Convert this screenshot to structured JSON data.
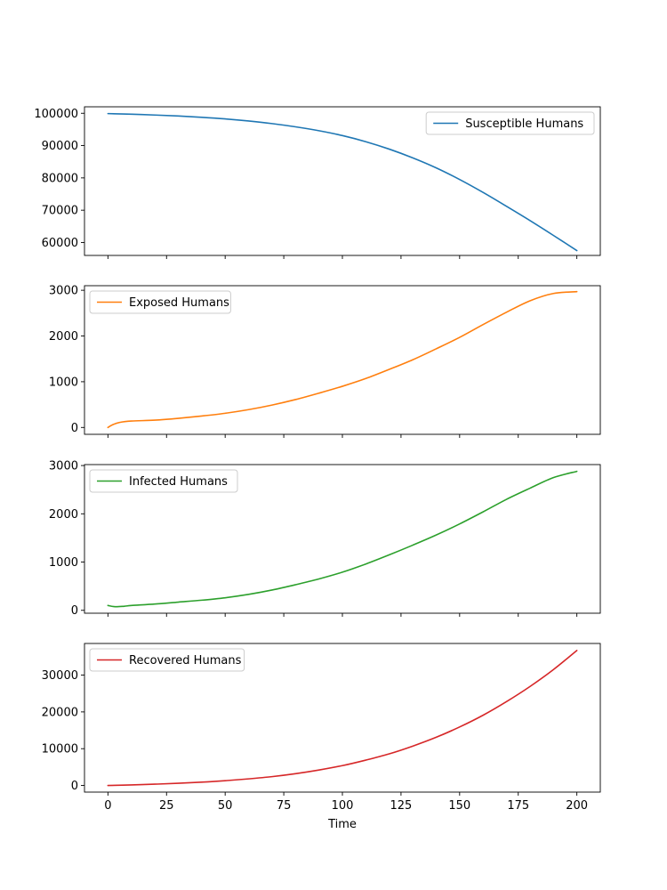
{
  "chart_data": [
    {
      "type": "line",
      "legend_position": "upper right",
      "ylim": [
        56000,
        102000
      ],
      "yticks": [
        60000,
        70000,
        80000,
        90000,
        100000
      ],
      "xlim": [
        -10,
        210
      ],
      "xticks": [
        0,
        25,
        50,
        75,
        100,
        125,
        150,
        175,
        200
      ],
      "show_xtick_labels": false,
      "xlabel": "",
      "series": [
        {
          "name": "Susceptible Humans",
          "color": "#1f77b4",
          "x": [
            0,
            10,
            20,
            30,
            40,
            50,
            60,
            70,
            80,
            90,
            100,
            110,
            120,
            130,
            140,
            150,
            160,
            170,
            180,
            190,
            200
          ],
          "y": [
            99900,
            99700,
            99450,
            99150,
            98750,
            98250,
            97600,
            96800,
            95800,
            94600,
            93100,
            91200,
            88900,
            86200,
            83100,
            79500,
            75500,
            71200,
            66800,
            62200,
            57500
          ]
        }
      ]
    },
    {
      "type": "line",
      "legend_position": "upper left",
      "ylim": [
        -150,
        3100
      ],
      "yticks": [
        0,
        1000,
        2000,
        3000
      ],
      "xlim": [
        -10,
        210
      ],
      "xticks": [
        0,
        25,
        50,
        75,
        100,
        125,
        150,
        175,
        200
      ],
      "show_xtick_labels": false,
      "xlabel": "",
      "series": [
        {
          "name": "Exposed Humans",
          "color": "#ff7f0e",
          "x": [
            0,
            2,
            5,
            10,
            20,
            30,
            40,
            50,
            60,
            70,
            80,
            90,
            100,
            110,
            120,
            130,
            140,
            150,
            160,
            170,
            180,
            190,
            200
          ],
          "y": [
            0,
            60,
            110,
            140,
            160,
            200,
            250,
            310,
            390,
            490,
            610,
            750,
            900,
            1070,
            1270,
            1480,
            1720,
            1970,
            2250,
            2520,
            2770,
            2930,
            2970
          ]
        }
      ]
    },
    {
      "type": "line",
      "legend_position": "upper left",
      "ylim": [
        -60,
        3020
      ],
      "yticks": [
        0,
        1000,
        2000,
        3000
      ],
      "xlim": [
        -10,
        210
      ],
      "xticks": [
        0,
        25,
        50,
        75,
        100,
        125,
        150,
        175,
        200
      ],
      "show_xtick_labels": false,
      "xlabel": "",
      "series": [
        {
          "name": "Infected Humans",
          "color": "#2ca02c",
          "x": [
            0,
            3,
            7,
            10,
            20,
            30,
            40,
            50,
            60,
            70,
            80,
            90,
            100,
            110,
            120,
            130,
            140,
            150,
            160,
            170,
            180,
            190,
            200
          ],
          "y": [
            100,
            75,
            85,
            100,
            130,
            170,
            210,
            260,
            330,
            420,
            530,
            650,
            790,
            960,
            1150,
            1350,
            1560,
            1790,
            2040,
            2300,
            2530,
            2750,
            2880
          ]
        }
      ]
    },
    {
      "type": "line",
      "legend_position": "upper left",
      "ylim": [
        -1800,
        38600
      ],
      "yticks": [
        0,
        10000,
        20000,
        30000
      ],
      "xlim": [
        -10,
        210
      ],
      "xticks": [
        0,
        25,
        50,
        75,
        100,
        125,
        150,
        175,
        200
      ],
      "show_xtick_labels": true,
      "xlabel": "Time",
      "series": [
        {
          "name": "Recovered Humans",
          "color": "#d62728",
          "x": [
            0,
            10,
            20,
            30,
            40,
            50,
            60,
            70,
            80,
            90,
            100,
            110,
            120,
            130,
            140,
            150,
            160,
            170,
            180,
            190,
            200
          ],
          "y": [
            0,
            150,
            350,
            600,
            900,
            1300,
            1800,
            2400,
            3200,
            4200,
            5400,
            6900,
            8600,
            10700,
            13100,
            15900,
            19100,
            22800,
            26900,
            31500,
            36700
          ]
        }
      ]
    }
  ]
}
